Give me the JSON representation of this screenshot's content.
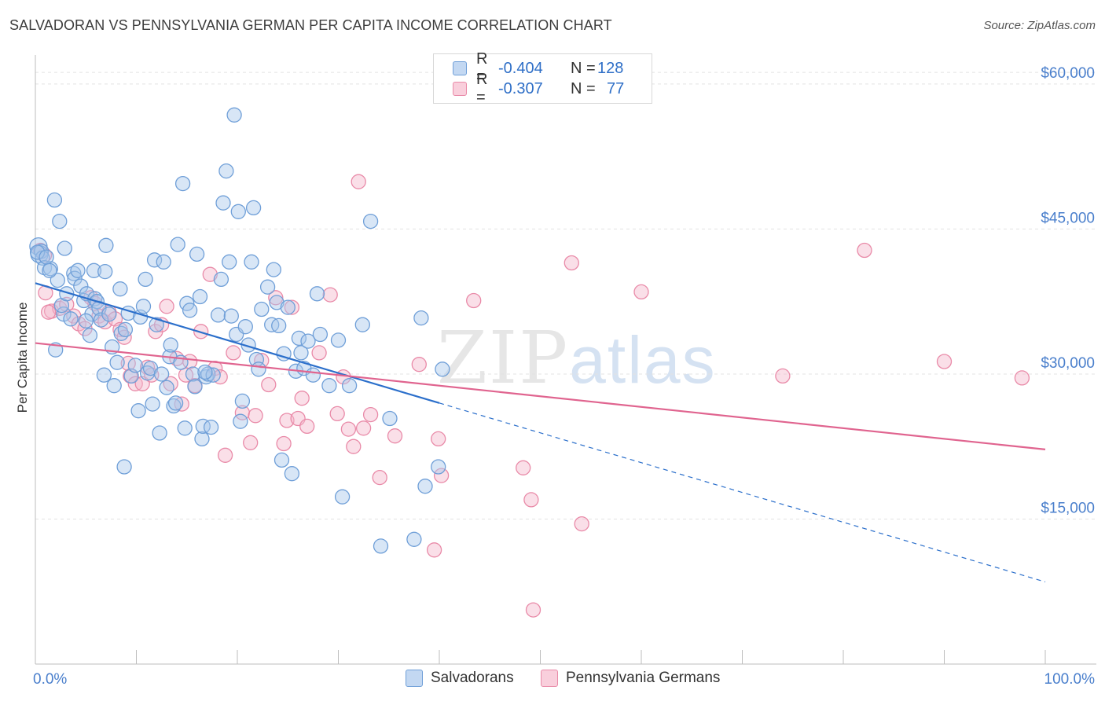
{
  "title": "SALVADORAN VS PENNSYLVANIA GERMAN PER CAPITA INCOME CORRELATION CHART",
  "source": "Source: ZipAtlas.com",
  "watermark": {
    "zip": "ZIP",
    "atlas": "atlas"
  },
  "legend_top": [
    {
      "r_label": "R =",
      "r_value": "-0.404",
      "n_label": "N =",
      "n_value": "128"
    },
    {
      "r_label": "R =",
      "r_value": "-0.307",
      "n_label": "N =",
      "n_value": "77"
    }
  ],
  "colors": {
    "blue_fill": "#a9c7ec",
    "blue_stroke": "#6f9fd8",
    "blue_line": "#2b6fcb",
    "pink_fill": "#f5b8cb",
    "pink_stroke": "#e98aa8",
    "pink_line": "#e0648f",
    "axis_text": "#4a7fcc",
    "grid": "#e3e3e3"
  },
  "chart_data": {
    "type": "scatter",
    "title": "SALVADORAN VS PENNSYLVANIA GERMAN PER CAPITA INCOME CORRELATION CHART",
    "xlabel": "",
    "ylabel": "Per Capita Income",
    "xlim": [
      0,
      100
    ],
    "ylim": [
      0,
      63000
    ],
    "x_tick_labels": [
      "0.0%",
      "100.0%"
    ],
    "y_ticks": [
      15000,
      30000,
      45000,
      60000
    ],
    "y_tick_labels": [
      "$15,000",
      "$30,000",
      "$45,000",
      "$60,000"
    ],
    "grid": true,
    "legend_position": "bottom",
    "series": [
      {
        "name": "Salvadorans",
        "r": -0.404,
        "n": 128,
        "trend": {
          "x0": 0,
          "y0": 39400,
          "x1": 40,
          "y1": 27000,
          "dash_to_x": 100,
          "dash_to_y": 8500
        },
        "points": [
          [
            0.3,
            43200
          ],
          [
            0.4,
            42400
          ],
          [
            0.6,
            42700
          ],
          [
            0.7,
            42000
          ],
          [
            0.9,
            41000
          ],
          [
            1.5,
            40900
          ],
          [
            1.9,
            48000
          ],
          [
            2.2,
            39700
          ],
          [
            2.4,
            45800
          ],
          [
            2.8,
            36200
          ],
          [
            2.6,
            37100
          ],
          [
            2.9,
            43000
          ],
          [
            3.1,
            38300
          ],
          [
            3.5,
            35700
          ],
          [
            3.8,
            40400
          ],
          [
            3.9,
            39900
          ],
          [
            4.2,
            40700
          ],
          [
            4.5,
            39100
          ],
          [
            4.8,
            37600
          ],
          [
            5.1,
            38300
          ],
          [
            5.4,
            34000
          ],
          [
            5.6,
            36200
          ],
          [
            5.8,
            40700
          ],
          [
            5.9,
            37800
          ],
          [
            6.1,
            37500
          ],
          [
            6.3,
            36800
          ],
          [
            6.5,
            35600
          ],
          [
            6.9,
            40600
          ],
          [
            7.0,
            43300
          ],
          [
            7.3,
            36200
          ],
          [
            7.6,
            32800
          ],
          [
            7.8,
            28800
          ],
          [
            8.1,
            31200
          ],
          [
            8.4,
            38800
          ],
          [
            8.5,
            34200
          ],
          [
            8.8,
            20400
          ],
          [
            8.9,
            34600
          ],
          [
            9.2,
            36300
          ],
          [
            9.5,
            29800
          ],
          [
            9.9,
            30900
          ],
          [
            10.2,
            26200
          ],
          [
            10.4,
            35900
          ],
          [
            10.7,
            37000
          ],
          [
            10.9,
            39800
          ],
          [
            11.1,
            30100
          ],
          [
            11.4,
            30600
          ],
          [
            11.6,
            26900
          ],
          [
            11.8,
            41800
          ],
          [
            12.0,
            35100
          ],
          [
            12.3,
            23900
          ],
          [
            12.5,
            30000
          ],
          [
            12.7,
            41600
          ],
          [
            13.0,
            28600
          ],
          [
            13.3,
            31800
          ],
          [
            13.4,
            33000
          ],
          [
            13.7,
            26700
          ],
          [
            13.9,
            27000
          ],
          [
            14.1,
            43400
          ],
          [
            14.4,
            31200
          ],
          [
            14.6,
            49700
          ],
          [
            14.8,
            24400
          ],
          [
            15.0,
            37300
          ],
          [
            15.3,
            36600
          ],
          [
            15.6,
            30000
          ],
          [
            15.8,
            28700
          ],
          [
            16.0,
            42400
          ],
          [
            16.3,
            38000
          ],
          [
            16.5,
            23300
          ],
          [
            16.6,
            24600
          ],
          [
            16.9,
            29700
          ],
          [
            17.1,
            30000
          ],
          [
            17.4,
            24500
          ],
          [
            17.6,
            29900
          ],
          [
            18.1,
            36100
          ],
          [
            18.4,
            39800
          ],
          [
            18.6,
            47700
          ],
          [
            18.9,
            51000
          ],
          [
            19.2,
            41600
          ],
          [
            19.4,
            36000
          ],
          [
            19.7,
            56800
          ],
          [
            19.9,
            34100
          ],
          [
            20.1,
            46800
          ],
          [
            20.3,
            25100
          ],
          [
            20.5,
            27200
          ],
          [
            20.8,
            34900
          ],
          [
            21.1,
            33000
          ],
          [
            21.4,
            41600
          ],
          [
            21.6,
            47200
          ],
          [
            21.9,
            31500
          ],
          [
            22.1,
            30500
          ],
          [
            22.4,
            36700
          ],
          [
            23.0,
            39000
          ],
          [
            23.4,
            35100
          ],
          [
            23.6,
            40800
          ],
          [
            23.9,
            37400
          ],
          [
            24.1,
            35000
          ],
          [
            24.4,
            21100
          ],
          [
            24.6,
            32100
          ],
          [
            25.0,
            36900
          ],
          [
            25.4,
            19700
          ],
          [
            25.8,
            30300
          ],
          [
            26.1,
            33700
          ],
          [
            26.3,
            32200
          ],
          [
            26.6,
            30600
          ],
          [
            27.0,
            33400
          ],
          [
            27.5,
            29900
          ],
          [
            27.9,
            38300
          ],
          [
            28.2,
            34100
          ],
          [
            29.1,
            28800
          ],
          [
            30.0,
            33500
          ],
          [
            30.4,
            17300
          ],
          [
            31.1,
            28800
          ],
          [
            32.4,
            35100
          ],
          [
            33.2,
            45800
          ],
          [
            34.2,
            12200
          ],
          [
            35.1,
            25400
          ],
          [
            37.5,
            12900
          ],
          [
            38.2,
            35800
          ],
          [
            38.6,
            18400
          ],
          [
            39.9,
            20400
          ],
          [
            40.3,
            30500
          ],
          [
            0.2,
            42600
          ],
          [
            1.1,
            42100
          ],
          [
            1.4,
            40700
          ],
          [
            2.0,
            32500
          ],
          [
            5.0,
            35500
          ],
          [
            6.8,
            29900
          ],
          [
            16.8,
            30200
          ]
        ]
      },
      {
        "name": "Pennsylvania Germans",
        "r": -0.307,
        "n": 77,
        "trend": {
          "x0": 0,
          "y0": 33200,
          "x1": 100,
          "y1": 22200
        },
        "points": [
          [
            0.5,
            42800
          ],
          [
            0.9,
            42300
          ],
          [
            1.0,
            38400
          ],
          [
            1.6,
            36500
          ],
          [
            2.4,
            36800
          ],
          [
            3.1,
            37200
          ],
          [
            3.8,
            36000
          ],
          [
            4.3,
            35200
          ],
          [
            4.9,
            34700
          ],
          [
            5.5,
            37900
          ],
          [
            5.9,
            37300
          ],
          [
            6.3,
            36000
          ],
          [
            6.9,
            35400
          ],
          [
            7.3,
            36400
          ],
          [
            7.9,
            35700
          ],
          [
            8.4,
            34600
          ],
          [
            8.8,
            33800
          ],
          [
            9.2,
            31100
          ],
          [
            9.4,
            29800
          ],
          [
            9.9,
            29000
          ],
          [
            10.6,
            29000
          ],
          [
            11.1,
            30700
          ],
          [
            11.5,
            29900
          ],
          [
            11.9,
            34400
          ],
          [
            12.5,
            35100
          ],
          [
            13.0,
            37000
          ],
          [
            13.4,
            29000
          ],
          [
            14.0,
            31600
          ],
          [
            14.5,
            26900
          ],
          [
            14.9,
            29900
          ],
          [
            15.3,
            31300
          ],
          [
            15.8,
            28800
          ],
          [
            16.4,
            34400
          ],
          [
            17.3,
            40300
          ],
          [
            17.8,
            30600
          ],
          [
            18.3,
            29700
          ],
          [
            18.8,
            21600
          ],
          [
            19.6,
            32200
          ],
          [
            20.5,
            26000
          ],
          [
            21.3,
            22900
          ],
          [
            21.8,
            25700
          ],
          [
            22.4,
            31400
          ],
          [
            23.1,
            28900
          ],
          [
            23.8,
            37900
          ],
          [
            24.6,
            22800
          ],
          [
            24.9,
            25200
          ],
          [
            25.4,
            36900
          ],
          [
            26.0,
            25400
          ],
          [
            26.4,
            27500
          ],
          [
            26.9,
            24600
          ],
          [
            28.1,
            32200
          ],
          [
            29.2,
            38200
          ],
          [
            29.9,
            25900
          ],
          [
            30.5,
            29700
          ],
          [
            31.0,
            24300
          ],
          [
            31.5,
            22500
          ],
          [
            32.0,
            49900
          ],
          [
            32.5,
            24400
          ],
          [
            33.2,
            25800
          ],
          [
            34.1,
            19300
          ],
          [
            35.6,
            23600
          ],
          [
            38.0,
            31000
          ],
          [
            39.5,
            11800
          ],
          [
            39.9,
            23300
          ],
          [
            40.2,
            19500
          ],
          [
            43.4,
            37600
          ],
          [
            48.3,
            20300
          ],
          [
            49.1,
            17000
          ],
          [
            49.3,
            5600
          ],
          [
            53.1,
            41500
          ],
          [
            54.1,
            14500
          ],
          [
            60.0,
            38500
          ],
          [
            74.0,
            29800
          ],
          [
            82.1,
            42800
          ],
          [
            90.0,
            31300
          ],
          [
            97.7,
            29600
          ],
          [
            1.3,
            36400
          ]
        ]
      }
    ]
  }
}
